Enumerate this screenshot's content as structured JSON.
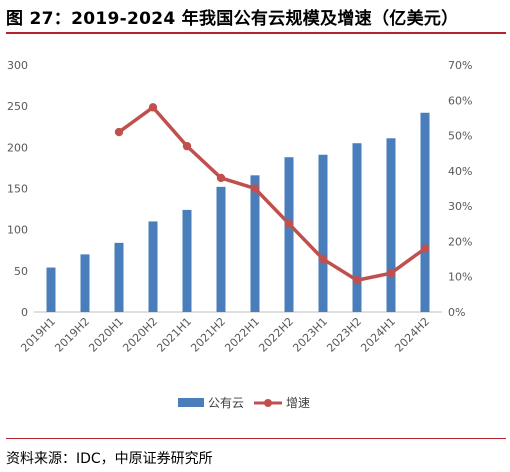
{
  "header": {
    "title": "图 27：2019-2024 年我国公有云规模及增速（亿美元）"
  },
  "footer": {
    "source": "资料来源：IDC，中原证券研究所"
  },
  "colors": {
    "bar": "#4a7ebb",
    "line": "#c0504d",
    "rule": "#b0262b"
  },
  "chart_data": {
    "type": "bar",
    "categories": [
      "2019H1",
      "2019H2",
      "2020H1",
      "2020H2",
      "2021H1",
      "2021H2",
      "2022H1",
      "2022H2",
      "2023H1",
      "2023H2",
      "2024H1",
      "2024H2"
    ],
    "series": [
      {
        "name": "公有云",
        "type": "bar",
        "axis": "left",
        "values": [
          54,
          70,
          84,
          110,
          124,
          152,
          166,
          188,
          191,
          205,
          211,
          242
        ]
      },
      {
        "name": "增速",
        "type": "line",
        "axis": "right",
        "unit": "%",
        "values": [
          null,
          null,
          51,
          58,
          47,
          38,
          35,
          25,
          15,
          9,
          11,
          18
        ]
      }
    ],
    "y_left": {
      "min": 0,
      "max": 300,
      "ticks": [
        "0",
        "50",
        "100",
        "150",
        "200",
        "250",
        "300"
      ]
    },
    "y_right": {
      "min": 0,
      "max": 70,
      "ticks": [
        "0%",
        "10%",
        "20%",
        "30%",
        "40%",
        "50%",
        "60%",
        "70%"
      ]
    },
    "legend": {
      "position": "bottom",
      "entries": [
        "公有云",
        "增速"
      ]
    },
    "grid": false
  }
}
